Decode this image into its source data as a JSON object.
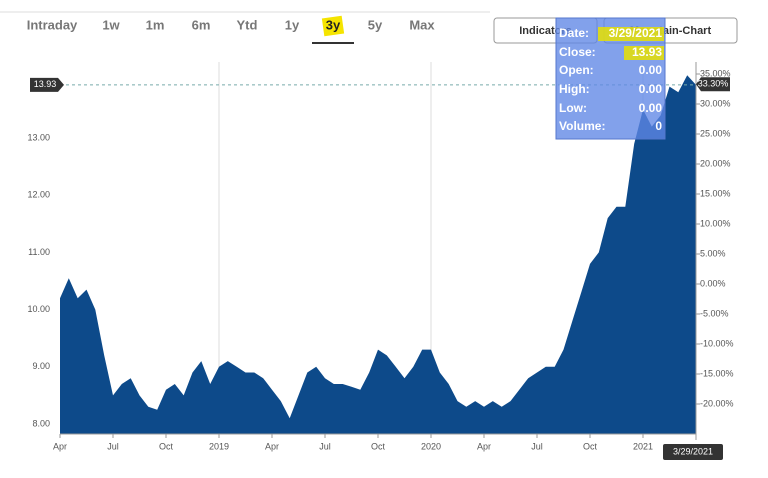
{
  "tabs": [
    "Intraday",
    "1w",
    "1m",
    "6m",
    "Ytd",
    "1y",
    "3y",
    "5y",
    "Max"
  ],
  "selected_tab": "3y",
  "buttons": [
    "Indicators",
    "Mountain-Chart"
  ],
  "tooltip": {
    "rows": [
      {
        "label": "Date:",
        "value": "3/29/2021"
      },
      {
        "label": "Close:",
        "value": "13.93"
      },
      {
        "label": "Open:",
        "value": "0.00"
      },
      {
        "label": "High:",
        "value": "0.00"
      },
      {
        "label": "Low:",
        "value": "0.00"
      },
      {
        "label": "Volume:",
        "value": "0"
      }
    ]
  },
  "chart_data": {
    "type": "area",
    "categories": [
      "Apr",
      null,
      null,
      null,
      null,
      null,
      "Jul",
      null,
      null,
      null,
      null,
      null,
      "Oct",
      null,
      null,
      null,
      null,
      null,
      "2019",
      null,
      null,
      null,
      null,
      null,
      "Apr",
      null,
      null,
      null,
      null,
      null,
      "Jul",
      null,
      null,
      null,
      null,
      null,
      "Oct",
      null,
      null,
      null,
      null,
      null,
      "2020",
      null,
      null,
      null,
      null,
      null,
      "Apr",
      null,
      null,
      null,
      null,
      null,
      "Jul",
      null,
      null,
      null,
      null,
      null,
      "Oct",
      null,
      null,
      null,
      null,
      null,
      "2021",
      null,
      null,
      null,
      null,
      null,
      "3/29/2021"
    ],
    "series": [
      {
        "color": "#0d4a8a",
        "values": [
          10.2,
          10.55,
          10.2,
          10.35,
          10.0,
          9.2,
          8.5,
          8.7,
          8.8,
          8.5,
          8.3,
          8.25,
          8.6,
          8.7,
          8.5,
          8.9,
          9.1,
          8.7,
          9.0,
          9.1,
          9.0,
          8.9,
          8.9,
          8.8,
          8.6,
          8.4,
          8.1,
          8.5,
          8.9,
          9.0,
          8.8,
          8.7,
          8.7,
          8.65,
          8.6,
          8.9,
          9.3,
          9.2,
          9.0,
          8.8,
          9.0,
          9.3,
          9.3,
          8.9,
          8.7,
          8.4,
          8.3,
          8.4,
          8.3,
          8.4,
          8.3,
          8.4,
          8.6,
          8.8,
          8.9,
          9.0,
          9.0,
          9.3,
          9.8,
          10.3,
          10.8,
          11.0,
          11.6,
          11.8,
          11.8,
          12.9,
          13.5,
          13.2,
          13.4,
          13.9,
          13.8,
          14.1,
          13.93
        ]
      }
    ],
    "year_grid": true,
    "ylim": [
      7.825,
      14.33
    ],
    "yticks": [
      {
        "value": 8,
        "label": "8.00"
      },
      {
        "value": 9,
        "label": "9.00"
      },
      {
        "value": 10,
        "label": "10.00"
      },
      {
        "value": 11,
        "label": "11.00"
      },
      {
        "value": 12,
        "label": "12.00"
      },
      {
        "value": 13,
        "label": "13.00"
      }
    ],
    "y2lim": [
      -25,
      37
    ],
    "y2ticks": [
      {
        "value": -20,
        "label": "-20.00%"
      },
      {
        "value": -15,
        "label": "-15.00%"
      },
      {
        "value": -10,
        "label": "-10.00%"
      },
      {
        "value": -5,
        "label": "-5.00%"
      },
      {
        "value": 0,
        "label": "0.00%"
      },
      {
        "value": 5,
        "label": "5.00%"
      },
      {
        "value": 10,
        "label": "10.00%"
      },
      {
        "value": 15,
        "label": "15.00%"
      },
      {
        "value": 20,
        "label": "20.00%"
      },
      {
        "value": 25,
        "label": "25.00%"
      },
      {
        "value": 30,
        "label": "30.00%"
      },
      {
        "value": 35,
        "label": "35.00%"
      }
    ],
    "current_value": 13.93,
    "current_change": {
      "value": 33.3,
      "label": "33.30%"
    }
  }
}
